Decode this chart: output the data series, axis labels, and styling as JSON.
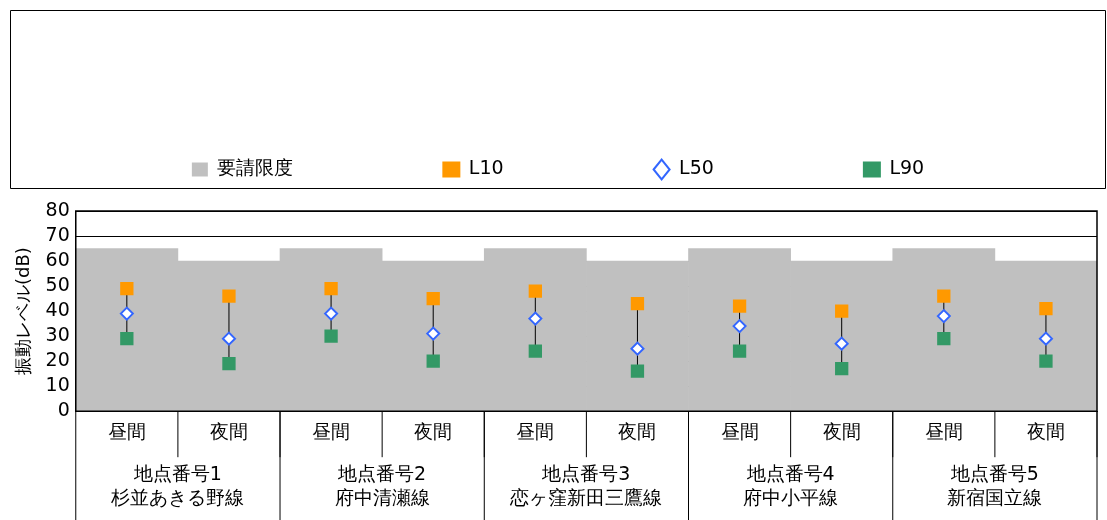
{
  "chart_data": {
    "type": "bar",
    "ylabel": "振動レベル(dB)",
    "categories": [
      "昼間",
      "夜間",
      "昼間",
      "夜間",
      "昼間",
      "夜間",
      "昼間",
      "夜間",
      "昼間",
      "夜間"
    ],
    "series": [
      {
        "name": "要請限度",
        "color": "#c0c0c0",
        "values": [
          65,
          60,
          65,
          60,
          65,
          60,
          65,
          60,
          65,
          60
        ]
      },
      {
        "name": "L10",
        "type": "scatter",
        "marker": "square",
        "color": "#ff9900",
        "values": [
          49,
          46,
          49,
          45,
          48,
          43,
          42,
          40,
          46,
          41
        ]
      },
      {
        "name": "L50",
        "type": "scatter",
        "marker": "diamond",
        "color": "#3366ff",
        "values": [
          39,
          29,
          39,
          31,
          37,
          25,
          34,
          27,
          38,
          29
        ]
      },
      {
        "name": "L90",
        "type": "scatter",
        "marker": "square",
        "color": "#339966",
        "values": [
          29,
          19,
          30,
          20,
          24,
          16,
          24,
          17,
          29,
          20
        ]
      }
    ],
    "annotations": [
      "地点番号1\n杉並あきる野線",
      "地点番号2\n府中清瀬線",
      "地点番号3\n恋ヶ窪新田三鷹線",
      "地点番号4\n府中小平線",
      "地点番号5\n新宿国立線"
    ],
    "ylim": [
      0,
      80
    ],
    "yticks": [
      0,
      10,
      20,
      30,
      40,
      50,
      60,
      70,
      80
    ],
    "grid": "y",
    "legend": "top"
  }
}
